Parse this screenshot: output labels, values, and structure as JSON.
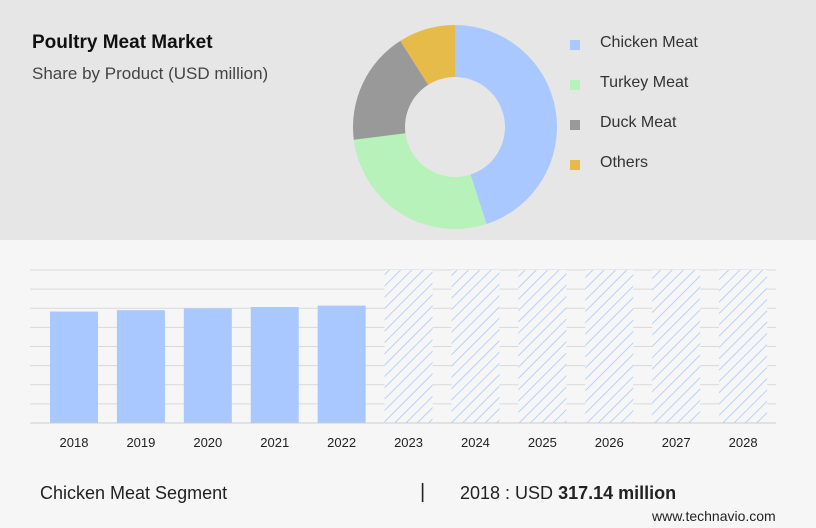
{
  "header": {
    "title": "Poultry Meat Market",
    "subtitle": "Share by Product (USD million)"
  },
  "chart_data": [
    {
      "type": "pie",
      "style": "donut",
      "categories": [
        "Chicken Meat",
        "Turkey Meat",
        "Duck Meat",
        "Others"
      ],
      "values": [
        45,
        28,
        18,
        9
      ],
      "colors": [
        "#a9c8ff",
        "#b6f2b9",
        "#999999",
        "#e6bb4a"
      ],
      "legend": {
        "placement": "right"
      }
    },
    {
      "type": "bar",
      "categories": [
        "2018",
        "2019",
        "2020",
        "2021",
        "2022",
        "2023",
        "2024",
        "2025",
        "2026",
        "2027",
        "2028"
      ],
      "values": [
        317.14,
        321,
        326,
        330,
        334,
        340,
        346,
        352,
        358,
        364,
        370
      ],
      "forecast_from": "2023",
      "colors": {
        "actual": "#a9c8ff",
        "forecast_hatch": "#a9c8ff"
      },
      "ylim": [
        0,
        370
      ],
      "grid": true
    }
  ],
  "footer": {
    "segment_label": "Chicken Meat Segment",
    "separator": "|",
    "value_prefix": "2018 : USD",
    "value_amount": "317.14 million",
    "site": "www.technavio.com"
  }
}
